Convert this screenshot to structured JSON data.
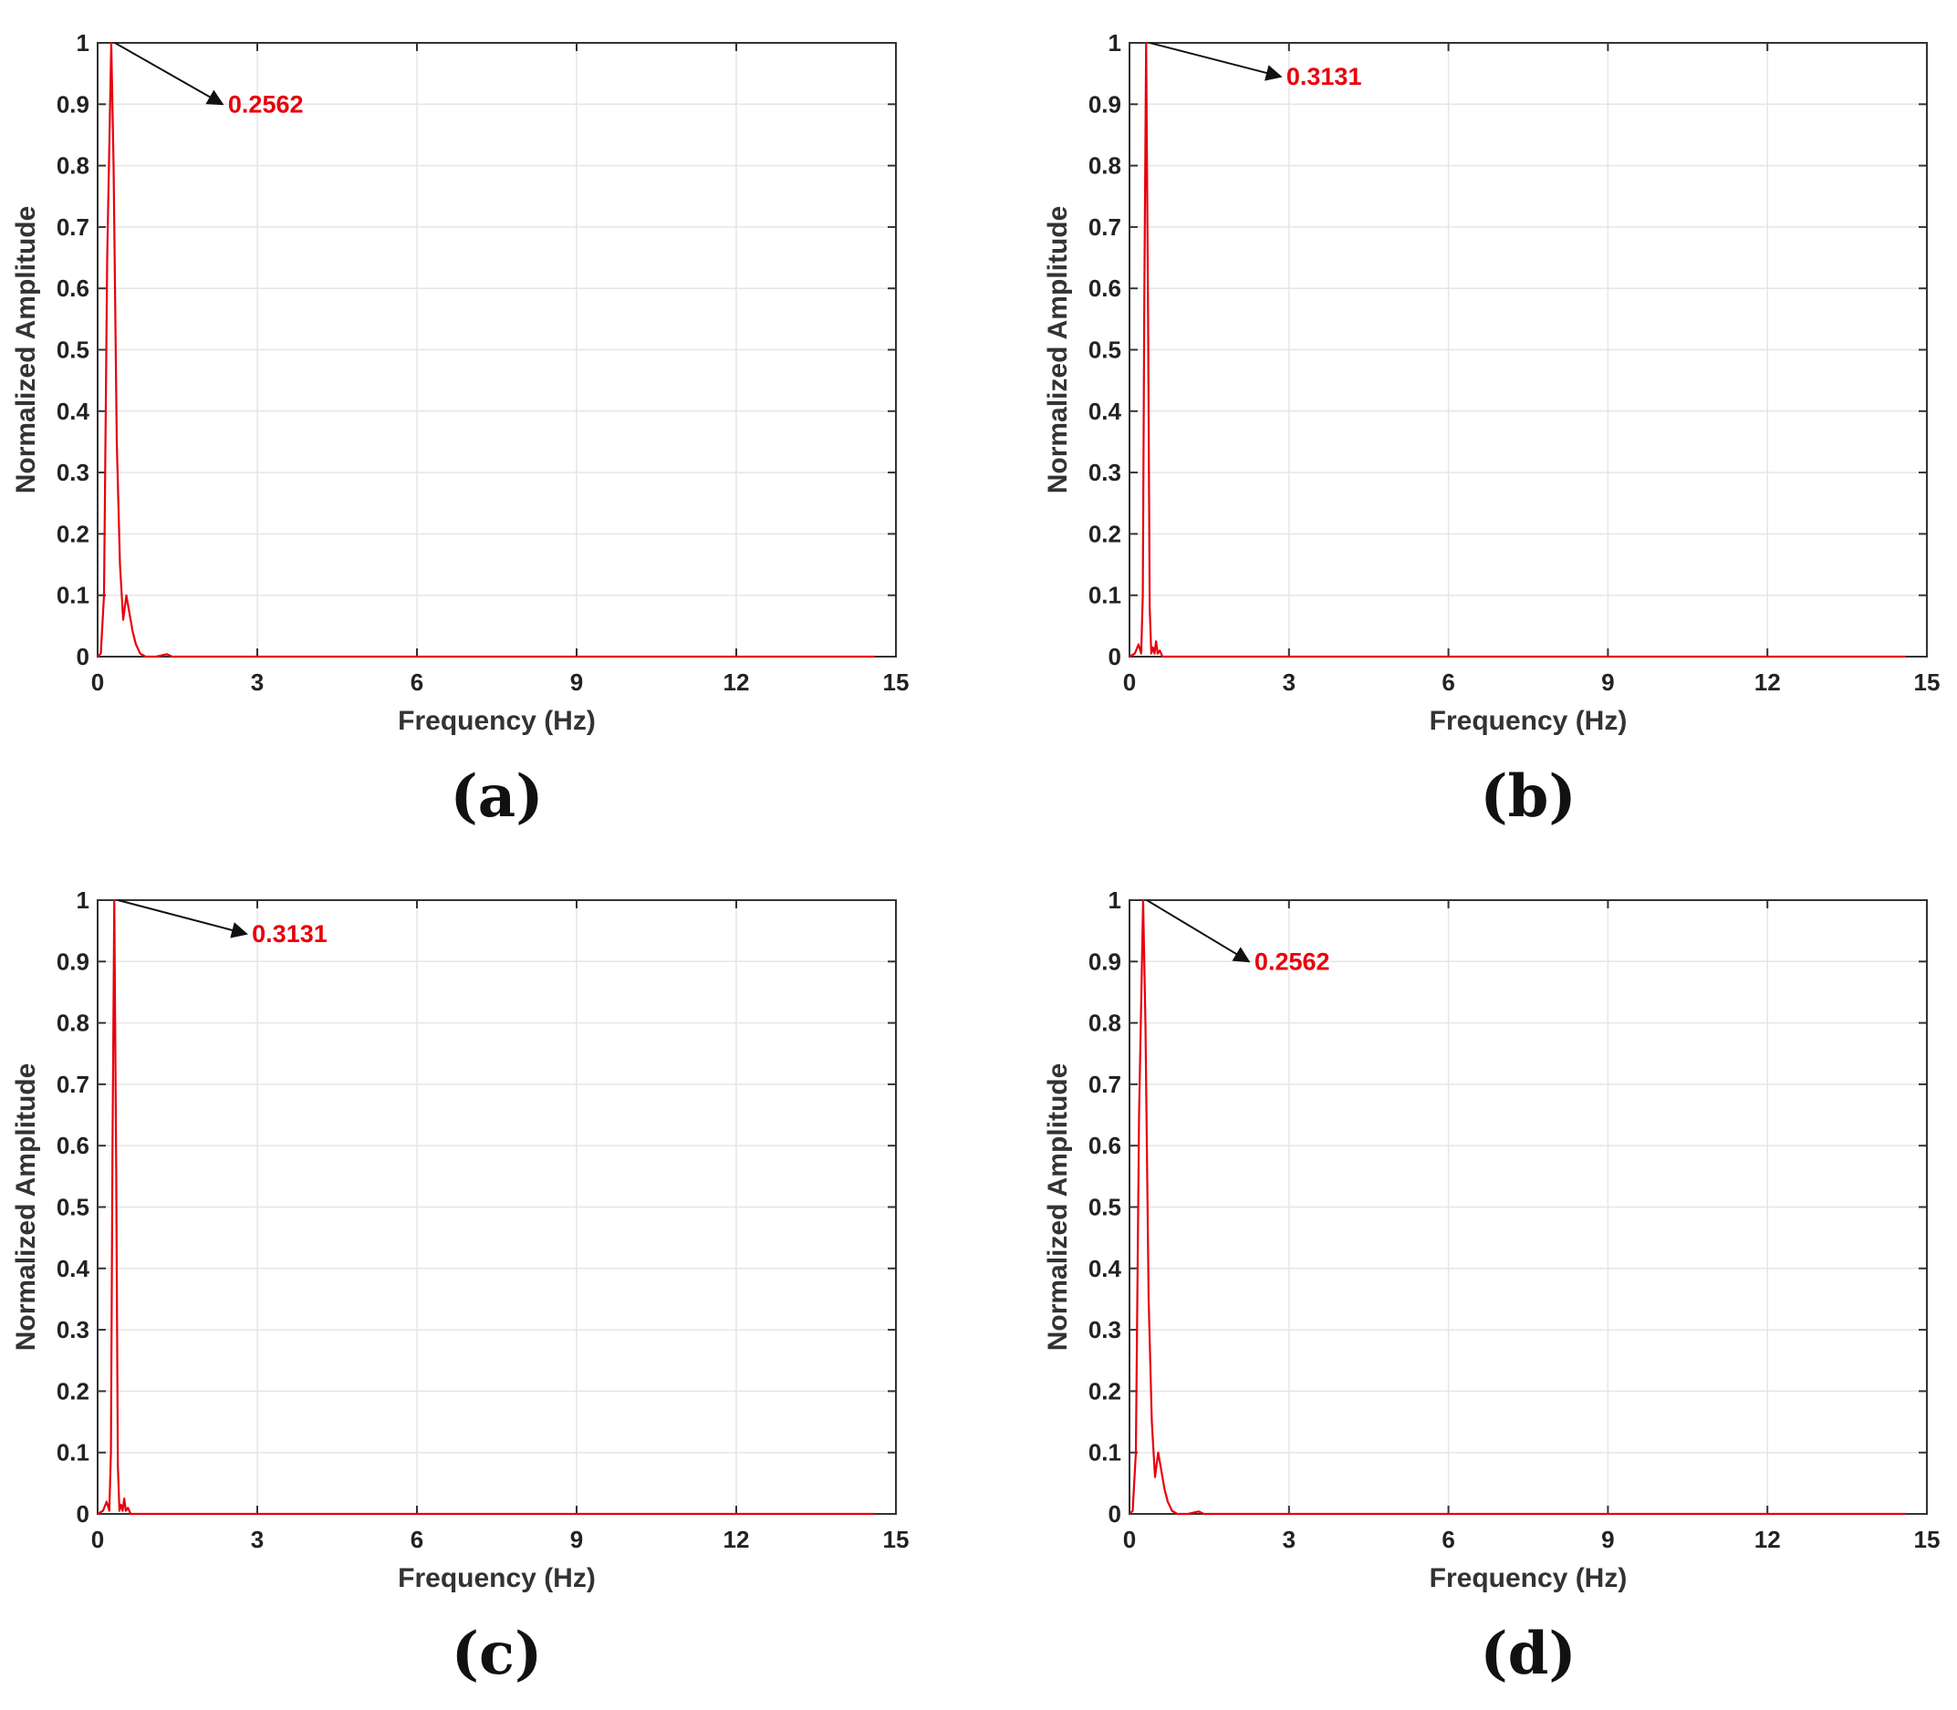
{
  "figure": {
    "xlabel": "Frequency (Hz)",
    "ylabel": "Normalized Amplitude",
    "colors": {
      "curve": "#e8000b",
      "annotation": "#e8000b",
      "arrow": "#111111",
      "grid": "#e6e6e6"
    }
  },
  "chart_data": [
    {
      "type": "line",
      "panel_label": "(a)",
      "xlabel": "Frequency (Hz)",
      "ylabel": "Normalized Amplitude",
      "xlim": [
        0,
        15
      ],
      "ylim": [
        0,
        1
      ],
      "xticks": [
        "0",
        "3",
        "6",
        "9",
        "12",
        "15"
      ],
      "yticks": [
        "0",
        "0.1",
        "0.2",
        "0.3",
        "0.4",
        "0.5",
        "0.6",
        "0.7",
        "0.8",
        "0.9",
        "1"
      ],
      "grid": true,
      "annotation": {
        "text": "0.2562",
        "x": 0.2562,
        "y": 1.0,
        "text_x": 2.45,
        "text_y": 0.9
      },
      "series": [
        {
          "x": [
            0,
            0.06,
            0.12,
            0.18,
            0.2562,
            0.3,
            0.36,
            0.42,
            0.48,
            0.54,
            0.6,
            0.66,
            0.72,
            0.8,
            0.9,
            1.1,
            1.3,
            1.4,
            1.6,
            2,
            5,
            10,
            14.6
          ],
          "y": [
            0,
            0.005,
            0.1,
            0.65,
            1.0,
            0.8,
            0.35,
            0.15,
            0.06,
            0.1,
            0.07,
            0.04,
            0.02,
            0.005,
            0,
            0,
            0.004,
            0,
            0,
            0,
            0,
            0,
            0
          ]
        }
      ]
    },
    {
      "type": "line",
      "panel_label": "(b)",
      "xlabel": "Frequency (Hz)",
      "ylabel": "Normalized Amplitude",
      "xlim": [
        0,
        15
      ],
      "ylim": [
        0,
        1
      ],
      "xticks": [
        "0",
        "3",
        "6",
        "9",
        "12",
        "15"
      ],
      "yticks": [
        "0",
        "0.1",
        "0.2",
        "0.3",
        "0.4",
        "0.5",
        "0.6",
        "0.7",
        "0.8",
        "0.9",
        "1"
      ],
      "grid": true,
      "annotation": {
        "text": "0.3131",
        "x": 0.3131,
        "y": 1.0,
        "text_x": 2.95,
        "text_y": 0.945
      },
      "series": [
        {
          "x": [
            0,
            0.1,
            0.17,
            0.22,
            0.25,
            0.28,
            0.3131,
            0.35,
            0.38,
            0.41,
            0.44,
            0.47,
            0.5,
            0.53,
            0.57,
            0.62,
            0.7,
            1,
            5,
            10,
            14.6
          ],
          "y": [
            0,
            0.005,
            0.02,
            0.005,
            0.1,
            0.6,
            1.0,
            0.55,
            0.08,
            0.005,
            0.015,
            0.005,
            0.025,
            0.005,
            0.01,
            0,
            0,
            0,
            0,
            0,
            0
          ]
        }
      ]
    },
    {
      "type": "line",
      "panel_label": "(c)",
      "xlabel": "Frequency (Hz)",
      "ylabel": "Normalized Amplitude",
      "xlim": [
        0,
        15
      ],
      "ylim": [
        0,
        1
      ],
      "xticks": [
        "0",
        "3",
        "6",
        "9",
        "12",
        "15"
      ],
      "yticks": [
        "0",
        "0.1",
        "0.2",
        "0.3",
        "0.4",
        "0.5",
        "0.6",
        "0.7",
        "0.8",
        "0.9",
        "1"
      ],
      "grid": true,
      "annotation": {
        "text": "0.3131",
        "x": 0.3131,
        "y": 1.0,
        "text_x": 2.9,
        "text_y": 0.945
      },
      "series": [
        {
          "x": [
            0,
            0.1,
            0.17,
            0.22,
            0.25,
            0.28,
            0.3131,
            0.35,
            0.38,
            0.41,
            0.44,
            0.47,
            0.5,
            0.53,
            0.57,
            0.62,
            0.7,
            1,
            5,
            10,
            14.6
          ],
          "y": [
            0,
            0.005,
            0.02,
            0.005,
            0.1,
            0.6,
            1.0,
            0.55,
            0.08,
            0.005,
            0.015,
            0.005,
            0.025,
            0.005,
            0.01,
            0,
            0,
            0,
            0,
            0,
            0
          ]
        }
      ]
    },
    {
      "type": "line",
      "panel_label": "(d)",
      "xlabel": "Frequency (Hz)",
      "ylabel": "Normalized Amplitude",
      "xlim": [
        0,
        15
      ],
      "ylim": [
        0,
        1
      ],
      "xticks": [
        "0",
        "3",
        "6",
        "9",
        "12",
        "15"
      ],
      "yticks": [
        "0",
        "0.1",
        "0.2",
        "0.3",
        "0.4",
        "0.5",
        "0.6",
        "0.7",
        "0.8",
        "0.9",
        "1"
      ],
      "grid": true,
      "annotation": {
        "text": "0.2562",
        "x": 0.2562,
        "y": 1.0,
        "text_x": 2.35,
        "text_y": 0.9
      },
      "series": [
        {
          "x": [
            0,
            0.06,
            0.12,
            0.18,
            0.2562,
            0.3,
            0.36,
            0.42,
            0.48,
            0.54,
            0.6,
            0.66,
            0.72,
            0.8,
            0.9,
            1.1,
            1.3,
            1.4,
            1.6,
            2,
            5,
            10,
            14.6
          ],
          "y": [
            0,
            0.005,
            0.1,
            0.65,
            1.0,
            0.8,
            0.35,
            0.15,
            0.06,
            0.1,
            0.07,
            0.04,
            0.02,
            0.005,
            0,
            0,
            0.004,
            0,
            0,
            0,
            0,
            0,
            0
          ]
        }
      ]
    }
  ]
}
